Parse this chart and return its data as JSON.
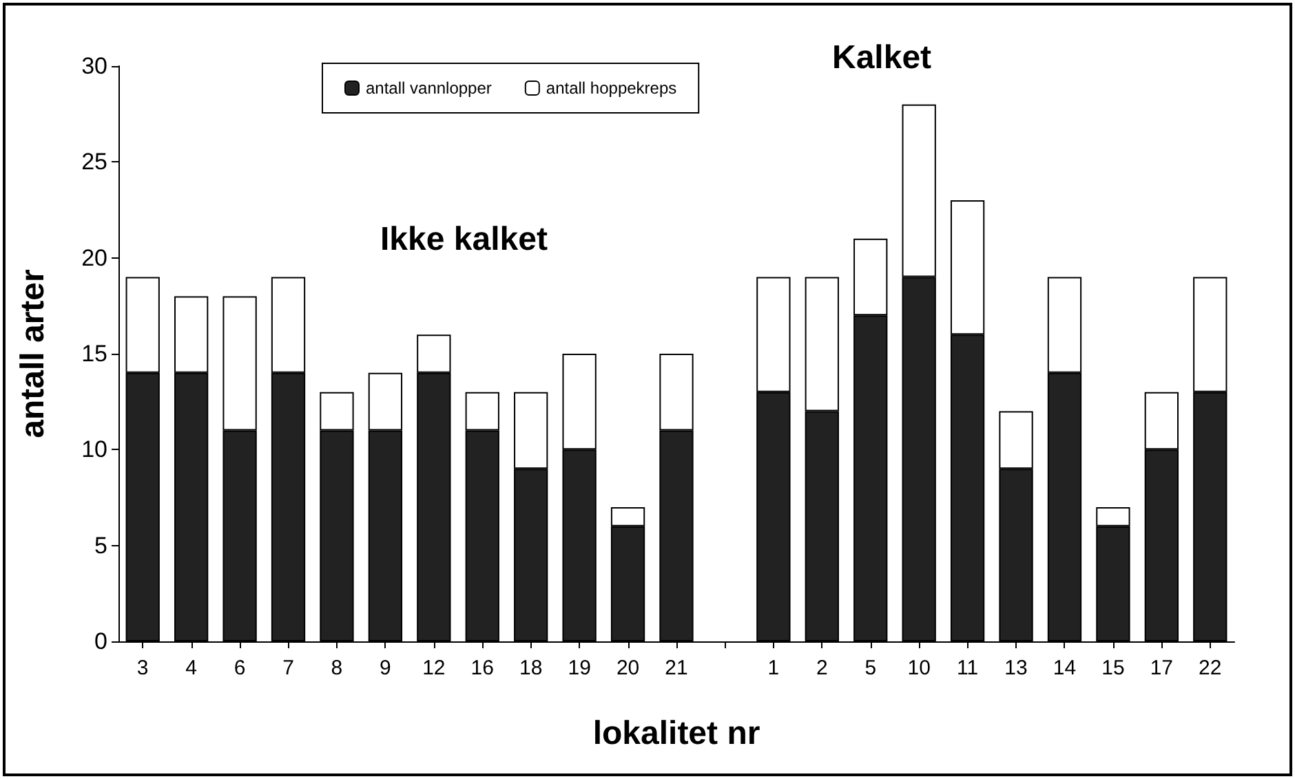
{
  "chart_data": {
    "type": "bar",
    "stacked": true,
    "xlabel": "lokalitet nr",
    "ylabel": "antall arter",
    "categories": [
      "3",
      "4",
      "6",
      "7",
      "8",
      "9",
      "12",
      "16",
      "18",
      "19",
      "20",
      "21",
      null,
      "1",
      "2",
      "5",
      "10",
      "11",
      "13",
      "14",
      "15",
      "17",
      "22"
    ],
    "series": [
      {
        "name": "antall vannlopper",
        "color": "#222222",
        "values": [
          14,
          14,
          11,
          14,
          11,
          11,
          14,
          11,
          9,
          10,
          6,
          11,
          null,
          13,
          12,
          17,
          19,
          16,
          9,
          14,
          6,
          10,
          13
        ]
      },
      {
        "name": "antall hoppekreps",
        "color": "#ffffff",
        "values": [
          5,
          4,
          7,
          5,
          2,
          3,
          2,
          2,
          4,
          5,
          1,
          4,
          null,
          6,
          7,
          4,
          9,
          7,
          3,
          5,
          1,
          3,
          6
        ]
      }
    ],
    "ylim": [
      0,
      30
    ],
    "yticks": [
      0,
      5,
      10,
      15,
      20,
      25,
      30
    ],
    "grid": false,
    "legend": "top",
    "annotations": [
      "Ikke kalket",
      "Kalket"
    ]
  }
}
